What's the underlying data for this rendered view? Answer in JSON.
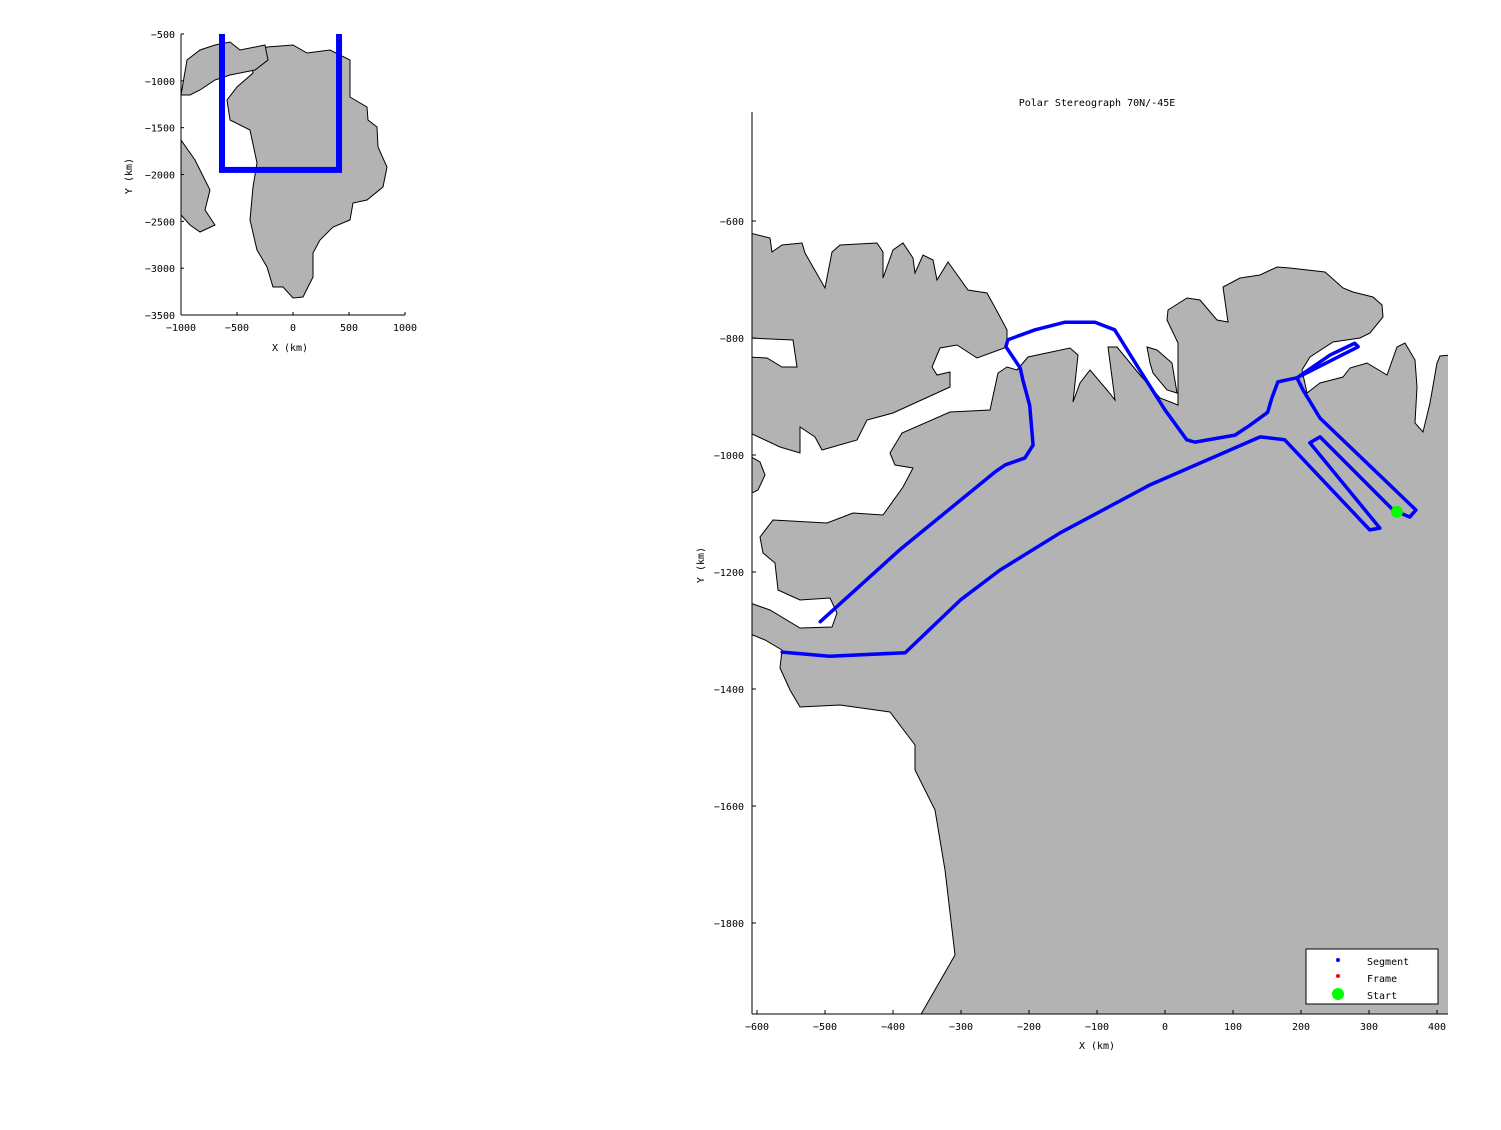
{
  "chart_data": [
    {
      "type": "line",
      "title": "",
      "xlabel": "X (km)",
      "ylabel": "Y (km)",
      "xlim": [
        -1000,
        1000
      ],
      "ylim": [
        -3500,
        -500
      ],
      "xticks": [
        -1000,
        -500,
        0,
        500,
        1000
      ],
      "yticks": [
        -500,
        -1000,
        -1500,
        -2000,
        -2500,
        -3000,
        -3500
      ],
      "land_color": "#b3b3b3",
      "extent_box": {
        "x": [
          -634,
          411
        ],
        "y": [
          -1951,
          -414
        ],
        "color": "#0000ff"
      }
    },
    {
      "type": "line",
      "title": "Polar Stereograph 70N/-45E",
      "xlabel": "X (km)",
      "ylabel": "Y (km)",
      "xlim": [
        -607,
        415
      ],
      "ylim": [
        -1954,
        -414
      ],
      "xticks": [
        -600,
        -500,
        -400,
        -300,
        -200,
        -100,
        0,
        100,
        200,
        300,
        400
      ],
      "yticks": [
        -600,
        -800,
        -1000,
        -1200,
        -1400,
        -1600,
        -1800
      ],
      "land_color": "#b3b3b3",
      "legend": {
        "placement": "bottom-right",
        "entries": [
          {
            "label": "Segment",
            "color": "#0000ff"
          },
          {
            "label": "Frame",
            "color": "#ff0000"
          },
          {
            "label": "Start",
            "color": "#00ff00"
          }
        ]
      },
      "series": [
        {
          "name": "Segment",
          "color": "#0000ff",
          "segments": [
            [
              [
                341,
                -1097
              ],
              [
                360,
                -1106
              ],
              [
                369,
                -1094
              ],
              [
                228,
                -937
              ],
              [
                203,
                -889
              ],
              [
                194,
                -868
              ],
              [
                243,
                -829
              ],
              [
                279,
                -809
              ],
              [
                284,
                -815
              ],
              [
                194,
                -868
              ],
              [
                166,
                -875
              ],
              [
                157,
                -903
              ],
              [
                151,
                -927
              ],
              [
                125,
                -949
              ],
              [
                103,
                -966
              ],
              [
                44,
                -978
              ],
              [
                32,
                -974
              ],
              [
                0,
                -923
              ],
              [
                -37,
                -855
              ],
              [
                -74,
                -786
              ],
              [
                -103,
                -773
              ],
              [
                -147,
                -773
              ],
              [
                -191,
                -786
              ],
              [
                -231,
                -803
              ],
              [
                -234,
                -815
              ],
              [
                -213,
                -851
              ],
              [
                -209,
                -872
              ],
              [
                -199,
                -915
              ],
              [
                -194,
                -983
              ],
              [
                -206,
                -1005
              ],
              [
                -235,
                -1017
              ],
              [
                -250,
                -1029
              ],
              [
                -390,
                -1162
              ],
              [
                -507,
                -1285
              ]
            ],
            [
              [
                -563,
                -1337
              ],
              [
                -493,
                -1344
              ],
              [
                -382,
                -1338
              ],
              [
                -301,
                -1248
              ],
              [
                -243,
                -1197
              ],
              [
                -154,
                -1133
              ],
              [
                -22,
                -1051
              ],
              [
                140,
                -969
              ],
              [
                176,
                -974
              ],
              [
                301,
                -1128
              ],
              [
                316,
                -1125
              ],
              [
                213,
                -979
              ],
              [
                228,
                -969
              ],
              [
                338,
                -1097
              ]
            ]
          ]
        }
      ],
      "start_point": {
        "name": "Start",
        "x": 341,
        "y": -1097,
        "color": "#00ff00"
      }
    }
  ]
}
